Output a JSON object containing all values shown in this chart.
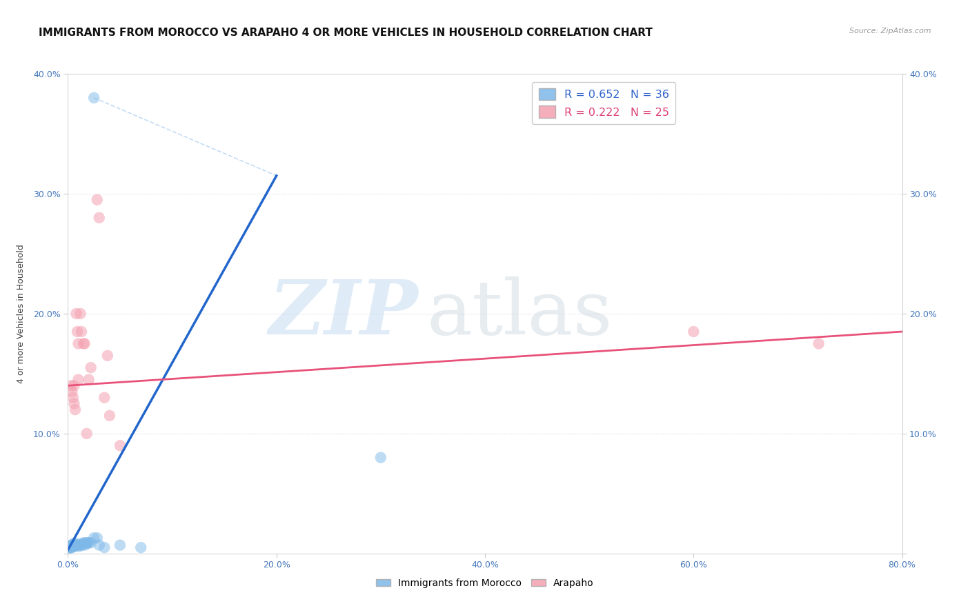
{
  "title": "IMMIGRANTS FROM MOROCCO VS ARAPAHO 4 OR MORE VEHICLES IN HOUSEHOLD CORRELATION CHART",
  "source": "Source: ZipAtlas.com",
  "ylabel": "4 or more Vehicles in Household",
  "xlim": [
    0,
    0.8
  ],
  "ylim": [
    0,
    0.4
  ],
  "xticks": [
    0.0,
    0.2,
    0.4,
    0.6,
    0.8
  ],
  "yticks": [
    0.0,
    0.1,
    0.2,
    0.3,
    0.4
  ],
  "xtick_labels": [
    "0.0%",
    "20.0%",
    "40.0%",
    "60.0%",
    "80.0%"
  ],
  "ytick_labels_left": [
    "",
    "10.0%",
    "20.0%",
    "30.0%",
    "40.0%"
  ],
  "ytick_labels_right": [
    "",
    "10.0%",
    "20.0%",
    "30.0%",
    "40.0%"
  ],
  "legend_blue_label": "R = 0.652   N = 36",
  "legend_pink_label": "R = 0.222   N = 25",
  "blue_color": "#7DB8E8",
  "pink_color": "#F4A0B0",
  "blue_line_color": "#2266CC",
  "pink_line_color": "#E8527A",
  "background_color": "#FFFFFF",
  "grid_color": "#E0E0EC",
  "title_fontsize": 11,
  "axis_label_fontsize": 9,
  "tick_fontsize": 9,
  "source_fontsize": 8,
  "blue_scatter_x": [
    0.001,
    0.001,
    0.002,
    0.002,
    0.003,
    0.003,
    0.004,
    0.004,
    0.005,
    0.005,
    0.006,
    0.006,
    0.007,
    0.007,
    0.008,
    0.009,
    0.01,
    0.011,
    0.012,
    0.013,
    0.014,
    0.015,
    0.016,
    0.017,
    0.018,
    0.019,
    0.02,
    0.022,
    0.025,
    0.028,
    0.03,
    0.035,
    0.05,
    0.07,
    0.3,
    0.025
  ],
  "blue_scatter_y": [
    0.005,
    0.004,
    0.005,
    0.006,
    0.005,
    0.007,
    0.005,
    0.006,
    0.007,
    0.008,
    0.006,
    0.008,
    0.006,
    0.007,
    0.007,
    0.007,
    0.008,
    0.006,
    0.007,
    0.007,
    0.008,
    0.009,
    0.007,
    0.009,
    0.008,
    0.009,
    0.009,
    0.009,
    0.013,
    0.013,
    0.007,
    0.005,
    0.007,
    0.005,
    0.08,
    0.38
  ],
  "pink_scatter_x": [
    0.003,
    0.004,
    0.005,
    0.006,
    0.006,
    0.007,
    0.008,
    0.009,
    0.01,
    0.012,
    0.013,
    0.015,
    0.016,
    0.018,
    0.02,
    0.022,
    0.028,
    0.03,
    0.035,
    0.038,
    0.04,
    0.6,
    0.72,
    0.05,
    0.01
  ],
  "pink_scatter_y": [
    0.14,
    0.135,
    0.13,
    0.125,
    0.14,
    0.12,
    0.2,
    0.185,
    0.175,
    0.2,
    0.185,
    0.175,
    0.175,
    0.1,
    0.145,
    0.155,
    0.295,
    0.28,
    0.13,
    0.165,
    0.115,
    0.185,
    0.175,
    0.09,
    0.145
  ],
  "blue_line_x0": 0.0,
  "blue_line_y0": 0.003,
  "blue_line_x1": 0.2,
  "blue_line_y1": 0.315,
  "pink_line_x0": 0.0,
  "pink_line_y0": 0.14,
  "pink_line_x1": 0.8,
  "pink_line_y1": 0.185
}
